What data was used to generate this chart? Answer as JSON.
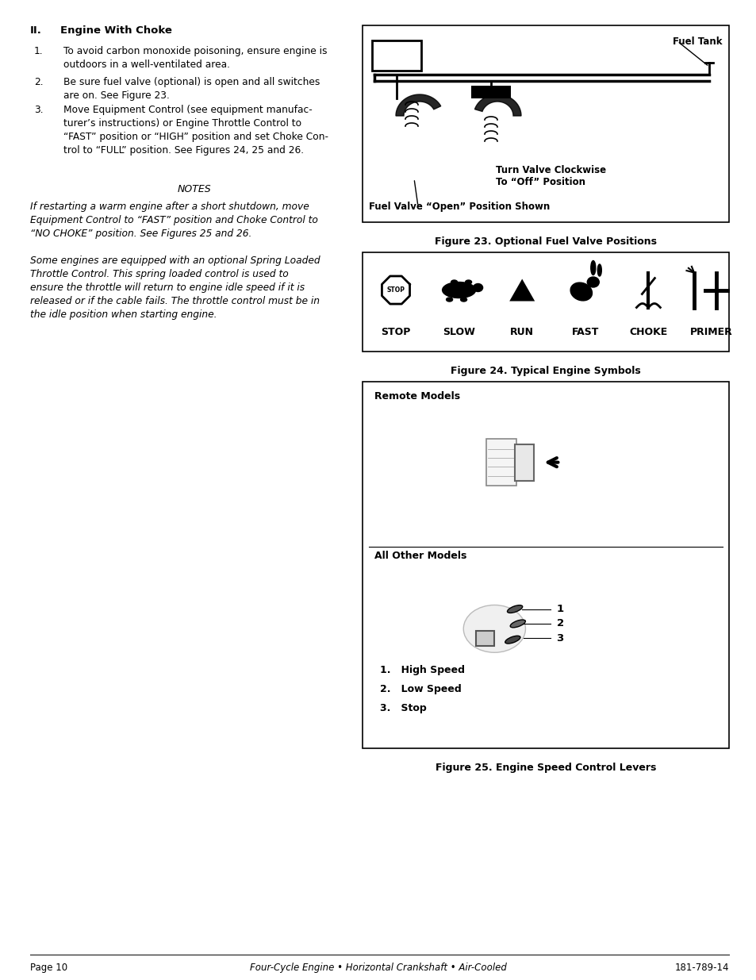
{
  "page_bg": "#ffffff",
  "page_width": 9.54,
  "page_height": 12.35,
  "section_heading": "II.   Engine With Choke",
  "numbered_items": [
    "To avoid carbon monoxide poisoning, ensure engine is\noutdoors in a well-ventilated area.",
    "Be sure fuel valve (optional) is open and all switches\nare on. See Figure 23.",
    "Move Equipment Control (see equipment manufac-\nturer’s instructions) or Engine Throttle Control to\n“FAST” position or “HIGH” position and set Choke Con-\ntrol to “FULL” position. See Figures 24, 25 and 26."
  ],
  "notes_title": "NOTES",
  "note1": "If restarting a warm engine after a short shutdown, move\nEquipment Control to “FAST” position and Choke Control to\n“NO CHOKE” position. See Figures 25 and 26.",
  "note2": "Some engines are equipped with an optional Spring Loaded\nThrottle Control. This spring loaded control is used to\nensure the throttle will return to engine idle speed if it is\nreleased or if the cable fails. The throttle control must be in\nthe idle position when starting engine.",
  "fig23_caption": "Figure 23. Optional Fuel Valve Positions",
  "fig23_label_fueltank": "Fuel Tank",
  "fig23_label_turnvalve": "Turn Valve Clockwise\nTo “Off” Position",
  "fig23_label_open": "Fuel Valve “Open” Position Shown",
  "fig24_caption": "Figure 24. Typical Engine Symbols",
  "fig24_symbols": [
    "STOP",
    "SLOW",
    "RUN",
    "FAST",
    "CHOKE",
    "PRIMER"
  ],
  "fig25_caption": "Figure 25. Engine Speed Control Levers",
  "fig25_remote": "Remote Models",
  "fig25_other": "All Other Models",
  "fig25_legend": [
    "1.   High Speed",
    "2.   Low Speed",
    "3.   Stop"
  ],
  "footer_left": "Page 10",
  "footer_center": "Four-Cycle Engine • Horizontal Crankshaft • Air-Cooled",
  "footer_right": "181-789-14"
}
